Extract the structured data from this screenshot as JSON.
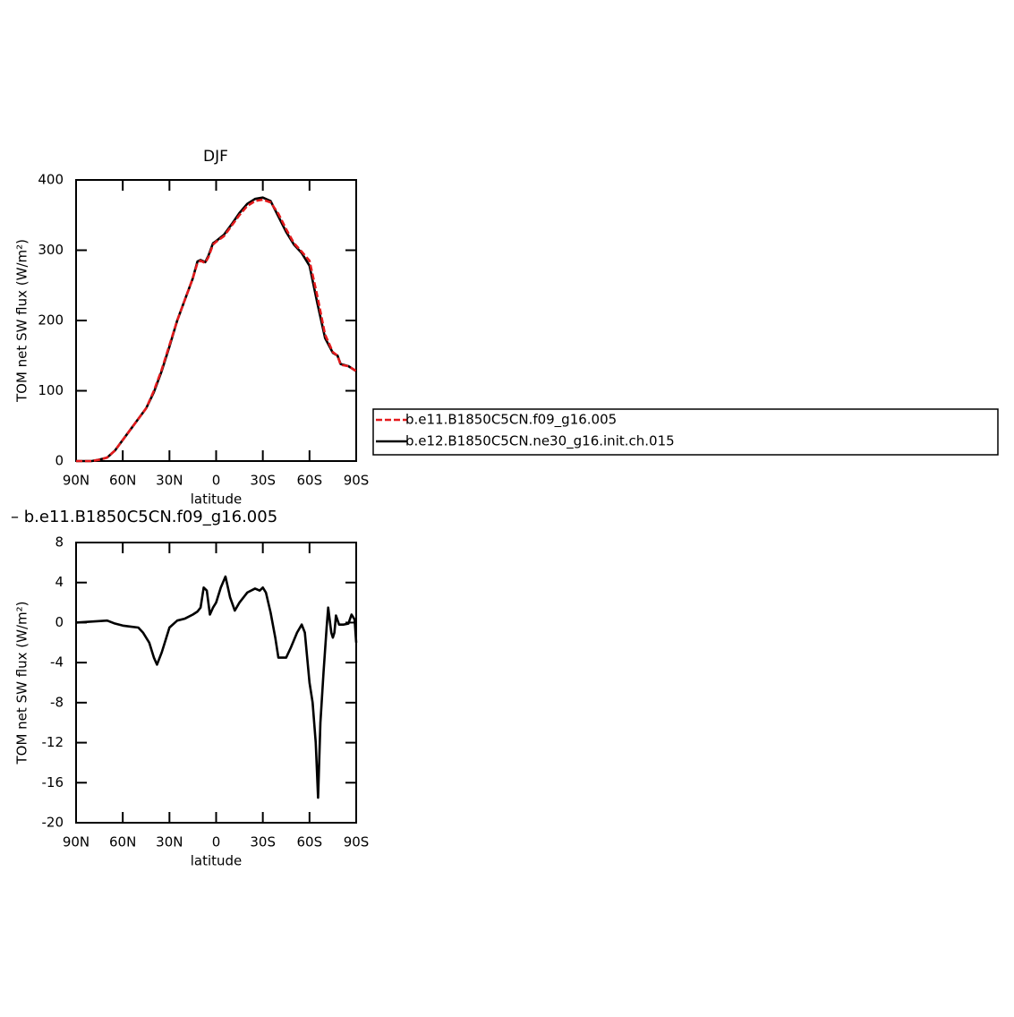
{
  "chart_data": [
    {
      "type": "line",
      "title": "DJF",
      "xlabel": "latitude",
      "ylabel": "TOM net SW flux (W/m²)",
      "x": [
        90,
        80,
        75,
        70,
        65,
        60,
        55,
        50,
        45,
        40,
        35,
        30,
        25,
        20,
        15,
        12,
        10,
        7,
        5,
        2,
        0,
        -5,
        -10,
        -15,
        -20,
        -25,
        -30,
        -35,
        -40,
        -45,
        -50,
        -55,
        -60,
        -65,
        -70,
        -75,
        -78,
        -80,
        -85,
        -90
      ],
      "series": [
        {
          "name": "b.e11.B1850C5CN.f09_g16.005",
          "color": "#e31a1c",
          "dashed": true,
          "values": [
            0,
            0,
            2,
            5,
            15,
            30,
            45,
            60,
            75,
            100,
            130,
            165,
            200,
            230,
            260,
            282,
            285,
            282,
            290,
            308,
            312,
            320,
            335,
            350,
            363,
            370,
            372,
            368,
            352,
            330,
            310,
            298,
            285,
            235,
            180,
            155,
            150,
            137,
            135,
            128
          ]
        },
        {
          "name": "b.e12.B1850C5CN.ne30_g16.init.ch.015",
          "color": "#000000",
          "dashed": false,
          "values": [
            0,
            0,
            2,
            5,
            15,
            30,
            45,
            60,
            75,
            98,
            128,
            163,
            200,
            230,
            260,
            284,
            286,
            283,
            292,
            310,
            313,
            322,
            337,
            353,
            366,
            373,
            375,
            370,
            348,
            326,
            308,
            296,
            278,
            225,
            175,
            154,
            150,
            138,
            135,
            128
          ]
        }
      ],
      "xlim": [
        90,
        -90
      ],
      "xticks": [
        {
          "value": 90,
          "label": "90N"
        },
        {
          "value": 60,
          "label": "60N"
        },
        {
          "value": 30,
          "label": "30N"
        },
        0,
        {
          "value": -30,
          "label": "30S"
        },
        {
          "value": -60,
          "label": "60S"
        },
        {
          "value": -90,
          "label": "90S"
        }
      ],
      "ylim": [
        0,
        400
      ],
      "yticks": [
        0,
        100,
        200,
        300,
        400
      ]
    },
    {
      "type": "line",
      "title": "– b.e11.B1850C5CN.f09_g16.005",
      "xlabel": "latitude",
      "ylabel": "TOM net SW flux (W/m²)",
      "x": [
        90,
        70,
        65,
        60,
        55,
        50,
        47,
        43,
        40,
        38,
        35,
        32,
        30,
        25,
        20,
        15,
        12,
        10,
        8,
        6,
        4,
        2,
        0,
        -3,
        -6,
        -9,
        -12,
        -15,
        -20,
        -25,
        -28,
        -30,
        -32,
        -35,
        -38,
        -40,
        -45,
        -48,
        -52,
        -55,
        -57,
        -60,
        -62,
        -64,
        -65.5,
        -67,
        -69,
        -71,
        -72,
        -74,
        -75,
        -76,
        -77,
        -79,
        -82,
        -85,
        -87,
        -89,
        -90
      ],
      "series": [
        {
          "color": "#000000",
          "dashed": false,
          "values": [
            0,
            0.2,
            -0.1,
            -0.3,
            -0.4,
            -0.5,
            -1,
            -2,
            -3.5,
            -4.2,
            -3,
            -1.5,
            -0.5,
            0.2,
            0.4,
            0.8,
            1.1,
            1.5,
            3.5,
            3.2,
            0.8,
            1.5,
            2,
            3.5,
            4.6,
            2.5,
            1.2,
            2,
            3,
            3.4,
            3.2,
            3.5,
            3,
            1,
            -1.5,
            -3.5,
            -3.5,
            -2.5,
            -1,
            -0.2,
            -1,
            -6,
            -8,
            -12,
            -17.5,
            -10,
            -5,
            -0.5,
            1.5,
            -1,
            -1.5,
            -1,
            0.7,
            -0.2,
            -0.2,
            -0.1,
            0.8,
            0.3,
            -2
          ]
        }
      ],
      "xlim": [
        90,
        -90
      ],
      "xticks": [
        {
          "value": 90,
          "label": "90N"
        },
        {
          "value": 60,
          "label": "60N"
        },
        {
          "value": 30,
          "label": "30N"
        },
        0,
        {
          "value": -30,
          "label": "30S"
        },
        {
          "value": -60,
          "label": "60S"
        },
        {
          "value": -90,
          "label": "90S"
        }
      ],
      "ylim": [
        -20,
        8
      ],
      "yticks": [
        8,
        4,
        0,
        -4,
        -8,
        -12,
        -16,
        -20
      ]
    }
  ]
}
